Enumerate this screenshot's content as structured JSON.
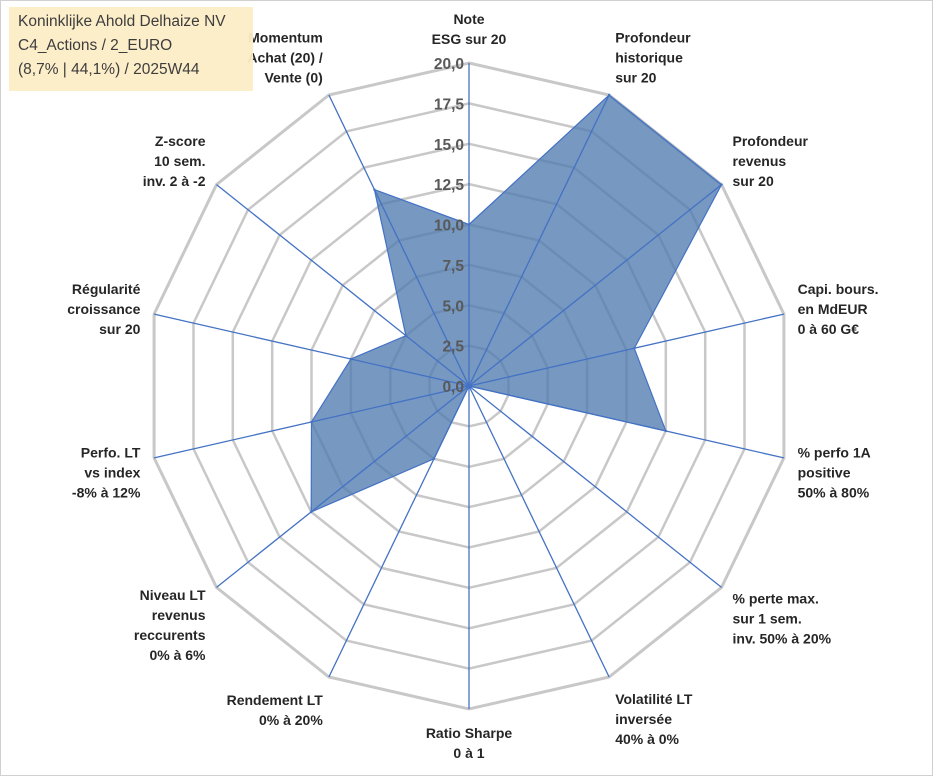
{
  "info_box": {
    "line1": "Koninklijke Ahold Delhaize NV",
    "line2": "C4_Actions / 2_EURO",
    "line3": "(8,7% | 44,1%) / 2025W44"
  },
  "colors": {
    "fill": "#4f7bb0",
    "stroke": "#4472c4",
    "grid": "#c8c8c8",
    "info_bg": "#fdeec8"
  },
  "chart_data": {
    "type": "radar",
    "title": "",
    "rmin": 0,
    "rmax": 20,
    "ticks": [
      "0,0",
      "2,5",
      "5,0",
      "7,5",
      "10,0",
      "12,5",
      "15,0",
      "17,5",
      "20,0"
    ],
    "grid": true,
    "axes": [
      [
        "Note",
        "ESG sur 20"
      ],
      [
        "Profondeur",
        "historique",
        "sur 20"
      ],
      [
        "Profondeur",
        "revenus",
        "sur 20"
      ],
      [
        "Capi. bours.",
        "en MdEUR",
        "0 à 60 G€"
      ],
      [
        "% perfo 1A",
        "positive",
        "50% à 80%"
      ],
      [
        "% perte max.",
        "sur 1 sem.",
        "inv. 50% à 20%"
      ],
      [
        "Volatilité LT",
        "inversée",
        "40% à 0%"
      ],
      [
        "Ratio Sharpe",
        "0 à 1"
      ],
      [
        "Rendement LT",
        "0% à 20%"
      ],
      [
        "Niveau LT",
        "revenus",
        "reccurents",
        "0% à 6%"
      ],
      [
        "Perfo. LT",
        "vs index",
        "-8% à 12%"
      ],
      [
        "Régularité",
        "croissance",
        "sur 20"
      ],
      [
        "Z-score",
        "10 sem.",
        "inv. 2 à -2"
      ],
      [
        "Momentum",
        "Achat (20) /",
        "Vente (0)"
      ]
    ],
    "values": [
      10,
      20,
      20,
      10.5,
      12.5,
      0,
      0,
      0,
      5,
      12.5,
      10,
      7.5,
      5,
      13.5
    ]
  }
}
